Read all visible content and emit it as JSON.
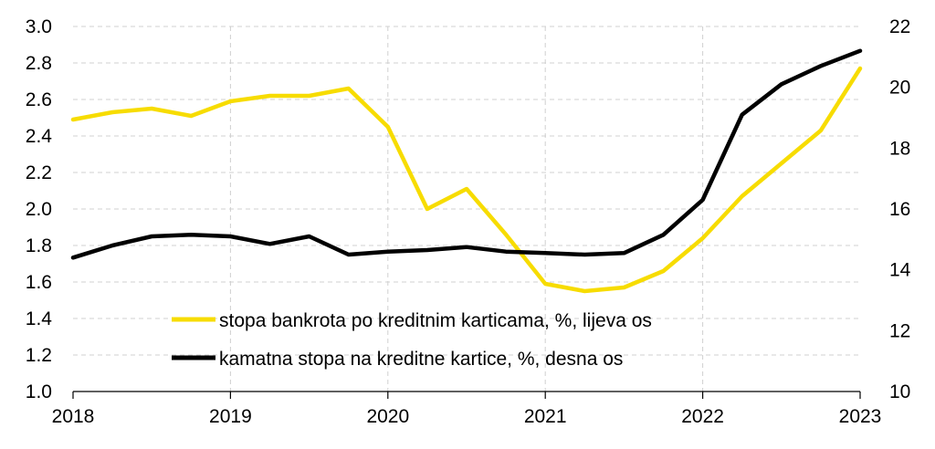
{
  "chart_data": {
    "type": "line",
    "x": [
      2018.0,
      2018.25,
      2018.5,
      2018.75,
      2019.0,
      2019.25,
      2019.5,
      2019.75,
      2020.0,
      2020.25,
      2020.5,
      2020.75,
      2021.0,
      2021.25,
      2021.5,
      2021.75,
      2022.0,
      2022.25,
      2022.5,
      2022.75,
      2023.0
    ],
    "series": [
      {
        "name": "stopa bankrota po kreditnim karticama, %, lijeva os",
        "axis": "left",
        "color": "#F7DC00",
        "values": [
          2.49,
          2.53,
          2.55,
          2.51,
          2.59,
          2.62,
          2.62,
          2.66,
          2.45,
          2.0,
          2.11,
          1.86,
          1.59,
          1.55,
          1.57,
          1.66,
          1.84,
          2.07,
          2.25,
          2.43,
          2.77
        ]
      },
      {
        "name": "kamatna stopa na kreditne kartice, %, desna os",
        "axis": "right",
        "color": "#000000",
        "values": [
          14.4,
          14.8,
          15.1,
          15.15,
          15.1,
          14.85,
          15.1,
          14.5,
          14.6,
          14.65,
          14.75,
          14.6,
          14.55,
          14.5,
          14.55,
          15.15,
          16.3,
          19.1,
          20.1,
          20.7,
          21.2
        ]
      }
    ],
    "x_ticks": [
      "2018",
      "2019",
      "2020",
      "2021",
      "2022",
      "2023"
    ],
    "y_left_ticks": [
      "1.0",
      "1.2",
      "1.4",
      "1.6",
      "1.8",
      "2.0",
      "2.2",
      "2.4",
      "2.6",
      "2.8",
      "3.0"
    ],
    "y_right_ticks": [
      "10",
      "12",
      "14",
      "16",
      "18",
      "20",
      "22"
    ],
    "xlim": [
      2018,
      2023
    ],
    "ylim_left": [
      1.0,
      3.0
    ],
    "ylim_right": [
      10,
      22
    ],
    "grid": "dashed",
    "legend_position": "bottom-center",
    "title": "",
    "xlabel": "",
    "ylabel": ""
  }
}
